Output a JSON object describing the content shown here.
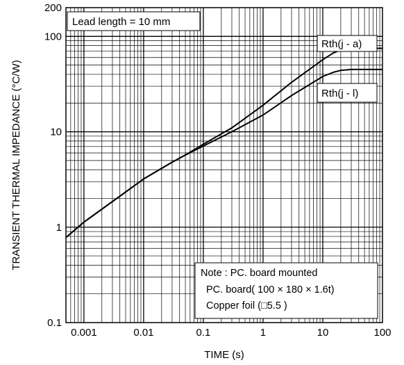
{
  "chart_data": {
    "type": "line",
    "xscale": "log",
    "yscale": "log",
    "xlim": [
      0.0005,
      100
    ],
    "ylim": [
      0.1,
      200
    ],
    "xlabel": "TIME (s)",
    "ylabel": "TRANSIENT THERMAL IMPEDANCE (°C/W)",
    "x_ticks": [
      {
        "value": 0.001,
        "label": "0.001"
      },
      {
        "value": 0.01,
        "label": "0.01"
      },
      {
        "value": 0.1,
        "label": "0.1"
      },
      {
        "value": 1,
        "label": "1"
      },
      {
        "value": 10,
        "label": "10"
      },
      {
        "value": 100,
        "label": "100"
      }
    ],
    "y_ticks": [
      {
        "value": 0.1,
        "label": "0.1"
      },
      {
        "value": 1,
        "label": "1"
      },
      {
        "value": 10,
        "label": "10"
      },
      {
        "value": 100,
        "label": "100"
      },
      {
        "value": 200,
        "label": "200"
      }
    ],
    "grid": true,
    "series": [
      {
        "name": "Rth(j - a)",
        "x": [
          0.0005,
          0.001,
          0.01,
          0.03,
          0.05,
          0.1,
          0.3,
          1,
          3,
          10,
          15,
          20,
          30,
          50,
          100
        ],
        "y": [
          0.78,
          1.13,
          3.2,
          4.8,
          5.7,
          7.4,
          11.0,
          19.0,
          33.0,
          57.0,
          67.0,
          72.0,
          75.0,
          75.0,
          75.0
        ]
      },
      {
        "name": "Rth(j - l)",
        "x": [
          0.0005,
          0.001,
          0.01,
          0.03,
          0.05,
          0.1,
          0.3,
          1,
          3,
          10,
          15,
          20,
          30,
          50,
          100
        ],
        "y": [
          0.78,
          1.13,
          3.2,
          4.8,
          5.7,
          7.1,
          10.0,
          15.0,
          24.0,
          38.0,
          42.0,
          44.0,
          45.0,
          45.0,
          45.0
        ]
      }
    ],
    "annotations": {
      "lead_length": "Lead length = 10 mm",
      "note_line1": "Note : PC. board mounted",
      "note_line2": "PC. board( 100 × 180 × 1.6t)",
      "note_line3": "Copper foil (□5.5 )"
    }
  }
}
